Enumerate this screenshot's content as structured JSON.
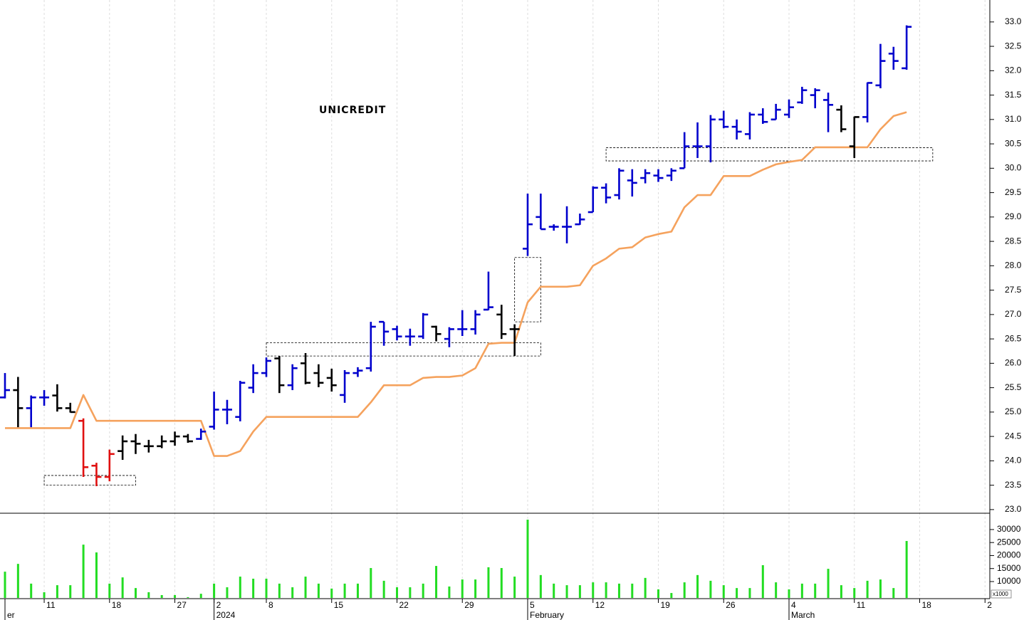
{
  "chart_data": [
    {
      "type": "ohlc",
      "title": "UNICREDIT",
      "categories": [
        null,
        null,
        null,
        "11",
        null,
        null,
        null,
        null,
        "18",
        null,
        null,
        null,
        null,
        "27",
        null,
        null,
        "2",
        null,
        null,
        null,
        "8",
        null,
        null,
        null,
        null,
        "15",
        null,
        null,
        null,
        null,
        "22",
        null,
        null,
        null,
        null,
        "29",
        null,
        null,
        null,
        null,
        "5",
        null,
        null,
        null,
        null,
        "12",
        null,
        null,
        null,
        null,
        "19",
        null,
        null,
        null,
        null,
        "26",
        null,
        null,
        null,
        null,
        "4",
        null,
        null,
        null,
        null,
        "11",
        null,
        null,
        null,
        null,
        "18",
        null,
        null,
        null,
        null,
        "2"
      ],
      "period_labels": [
        "er",
        null,
        null,
        null,
        null,
        null,
        null,
        null,
        null,
        null,
        null,
        null,
        null,
        null,
        null,
        null,
        "2024",
        null,
        null,
        null,
        null,
        null,
        null,
        null,
        null,
        null,
        null,
        null,
        null,
        null,
        null,
        null,
        null,
        null,
        null,
        null,
        null,
        null,
        null,
        null,
        "February",
        null,
        null,
        null,
        null,
        null,
        null,
        null,
        null,
        null,
        null,
        null,
        null,
        null,
        null,
        null,
        null,
        null,
        null,
        null,
        "March",
        null,
        null,
        null,
        null,
        null,
        null,
        null,
        null,
        null,
        null,
        null,
        null,
        null,
        null,
        null
      ],
      "open": [
        25.3,
        25.45,
        25.08,
        25.3,
        25.34,
        25.08,
        24.82,
        23.9,
        23.67,
        24.2,
        24.4,
        24.3,
        24.3,
        24.4,
        24.5,
        24.45,
        24.7,
        25.05,
        24.9,
        25.5,
        25.8,
        26.1,
        25.55,
        26.0,
        25.8,
        25.7,
        25.35,
        25.8,
        25.9,
        26.85,
        26.7,
        26.55,
        26.55,
        26.75,
        26.5,
        26.7,
        26.7,
        27.1,
        27.0,
        26.7,
        28.35,
        29.0,
        28.8,
        28.8,
        28.85,
        29.1,
        29.6,
        29.45,
        29.75,
        29.8,
        29.85,
        29.85,
        30.0,
        30.45,
        30.45,
        31.0,
        30.85,
        30.7,
        31.1,
        31.0,
        31.1,
        31.35,
        31.5,
        31.4,
        31.2,
        30.45,
        31.05,
        31.7,
        32.35,
        32.05,
        null,
        null,
        null,
        null,
        null,
        null
      ],
      "high": [
        25.8,
        25.72,
        25.34,
        25.45,
        25.57,
        25.19,
        24.87,
        23.96,
        24.23,
        24.52,
        24.55,
        24.43,
        24.52,
        24.6,
        24.55,
        24.66,
        25.42,
        25.25,
        25.64,
        25.98,
        26.12,
        26.15,
        25.98,
        26.21,
        25.98,
        25.89,
        25.86,
        25.92,
        26.85,
        26.85,
        26.77,
        26.71,
        27.03,
        26.77,
        26.74,
        27.09,
        27.09,
        27.88,
        27.2,
        26.8,
        29.48,
        29.48,
        28.85,
        29.22,
        29.07,
        29.63,
        29.69,
        30.0,
        29.98,
        29.98,
        29.98,
        30.0,
        30.74,
        30.94,
        31.09,
        31.18,
        31.0,
        31.15,
        31.23,
        31.32,
        31.41,
        31.67,
        31.64,
        31.55,
        31.29,
        31.06,
        31.76,
        32.55,
        32.49,
        32.93,
        null,
        null,
        null,
        null,
        null,
        null
      ],
      "low": [
        25.28,
        24.69,
        24.69,
        25.13,
        25.01,
        24.99,
        23.67,
        23.48,
        23.58,
        24.02,
        24.14,
        24.17,
        24.26,
        24.31,
        24.37,
        24.43,
        24.64,
        24.75,
        24.81,
        25.39,
        25.72,
        25.39,
        25.45,
        25.57,
        25.51,
        25.42,
        25.19,
        25.72,
        25.83,
        26.36,
        26.47,
        26.36,
        26.5,
        26.45,
        26.33,
        26.56,
        26.59,
        27.09,
        26.5,
        26.15,
        28.2,
        28.75,
        28.72,
        28.46,
        28.84,
        29.1,
        29.28,
        29.36,
        29.42,
        29.69,
        29.72,
        29.74,
        30.0,
        30.21,
        30.12,
        30.82,
        30.59,
        30.59,
        30.91,
        31.0,
        31.03,
        31.32,
        31.23,
        30.74,
        30.74,
        30.21,
        30.94,
        31.64,
        32.02,
        32.02,
        null,
        null,
        null,
        null,
        null,
        null
      ],
      "close": [
        25.45,
        25.08,
        25.3,
        25.3,
        25.08,
        25.0,
        23.87,
        23.67,
        24.14,
        24.4,
        24.35,
        24.3,
        24.4,
        24.5,
        24.4,
        24.6,
        25.05,
        25.05,
        25.6,
        25.8,
        26.05,
        25.55,
        25.9,
        25.6,
        25.6,
        25.55,
        25.8,
        25.85,
        26.75,
        26.65,
        26.55,
        26.55,
        27.0,
        26.6,
        26.7,
        26.7,
        27.0,
        27.15,
        26.6,
        26.7,
        28.85,
        28.75,
        28.8,
        28.8,
        28.95,
        29.6,
        29.4,
        29.95,
        29.7,
        29.9,
        29.8,
        29.95,
        30.45,
        30.45,
        31.0,
        30.85,
        30.75,
        31.1,
        30.95,
        31.2,
        31.25,
        31.6,
        31.6,
        31.3,
        30.8,
        31.05,
        31.75,
        32.2,
        32.2,
        32.9,
        null,
        null,
        null,
        null,
        null,
        null
      ],
      "bar_colors": [
        "mediumblue",
        "black",
        "mediumblue",
        "mediumblue",
        "black",
        "black",
        "#e01010",
        "#e01010",
        "#e01010",
        "black",
        "black",
        "black",
        "black",
        "black",
        "black",
        "mediumblue",
        "mediumblue",
        "mediumblue",
        "mediumblue",
        "mediumblue",
        "mediumblue",
        "black",
        "mediumblue",
        "black",
        "black",
        "black",
        "mediumblue",
        "mediumblue",
        "mediumblue",
        "mediumblue",
        "mediumblue",
        "mediumblue",
        "mediumblue",
        "black",
        "mediumblue",
        "mediumblue",
        "mediumblue",
        "mediumblue",
        "black",
        "black",
        "mediumblue",
        "mediumblue",
        "mediumblue",
        "mediumblue",
        "mediumblue",
        "mediumblue",
        "mediumblue",
        "mediumblue",
        "mediumblue",
        "mediumblue",
        "mediumblue",
        "mediumblue",
        "mediumblue",
        "mediumblue",
        "mediumblue",
        "mediumblue",
        "mediumblue",
        "mediumblue",
        "mediumblue",
        "mediumblue",
        "mediumblue",
        "mediumblue",
        "mediumblue",
        "mediumblue",
        "black",
        "black",
        "mediumblue",
        "mediumblue",
        "mediumblue",
        "mediumblue",
        null,
        null,
        null,
        null,
        null,
        null
      ],
      "stop_line": {
        "color": "#f5a25d",
        "values": [
          24.67,
          24.67,
          24.67,
          24.67,
          24.67,
          24.67,
          25.35,
          24.82,
          24.82,
          24.82,
          24.82,
          24.82,
          24.82,
          24.82,
          24.82,
          24.82,
          24.1,
          24.1,
          24.2,
          24.6,
          24.9,
          24.9,
          24.9,
          24.9,
          24.9,
          24.9,
          24.9,
          24.9,
          25.2,
          25.55,
          25.55,
          25.55,
          25.7,
          25.72,
          25.72,
          25.75,
          25.9,
          26.4,
          26.42,
          26.42,
          27.25,
          27.57,
          27.57,
          27.57,
          27.6,
          28.0,
          28.15,
          28.35,
          28.38,
          28.58,
          28.65,
          28.7,
          29.2,
          29.45,
          29.45,
          29.84,
          29.84,
          29.84,
          29.97,
          30.08,
          30.13,
          30.17,
          30.43,
          30.43,
          30.43,
          30.43,
          30.43,
          30.8,
          31.07,
          31.15,
          null,
          null,
          null,
          null,
          null,
          null
        ]
      },
      "boxes": [
        {
          "from": 3,
          "to": 10,
          "low": 23.5,
          "high": 23.7
        },
        {
          "from": 20,
          "to": 41,
          "low": 26.15,
          "high": 26.42
        },
        {
          "from": 39,
          "to": 41,
          "low": 26.85,
          "high": 28.17
        },
        {
          "from": 46,
          "to": 71,
          "low": 30.15,
          "high": 30.42
        }
      ],
      "ylim": [
        22.94,
        33.45
      ],
      "yticks": [
        {
          "value": 23,
          "label": "23.0"
        },
        {
          "value": 23.5,
          "label": "23.5"
        },
        {
          "value": 24,
          "label": "24.0"
        },
        {
          "value": 24.5,
          "label": "24.5"
        },
        {
          "value": 25,
          "label": "25.0"
        },
        {
          "value": 25.5,
          "label": "25.5"
        },
        {
          "value": 26,
          "label": "26.0"
        },
        {
          "value": 26.5,
          "label": "26.5"
        },
        {
          "value": 27,
          "label": "27.0"
        },
        {
          "value": 27.5,
          "label": "27.5"
        },
        {
          "value": 28,
          "label": "28.0"
        },
        {
          "value": 28.5,
          "label": "28.5"
        },
        {
          "value": 29,
          "label": "29.0"
        },
        {
          "value": 29.5,
          "label": "29.5"
        },
        {
          "value": 30,
          "label": "30.0"
        },
        {
          "value": 30.5,
          "label": "30.5"
        },
        {
          "value": 31,
          "label": "31.0"
        },
        {
          "value": 31.5,
          "label": "31.5"
        },
        {
          "value": 32,
          "label": "32.0"
        },
        {
          "value": 32.5,
          "label": "32.5"
        },
        {
          "value": 33,
          "label": "33.0"
        }
      ],
      "grid": true
    },
    {
      "type": "bar",
      "color": "#22dd22",
      "unit_label": "x1000",
      "values": [
        13800,
        16800,
        9200,
        5900,
        8600,
        8600,
        24200,
        21200,
        9200,
        11600,
        7500,
        5900,
        4800,
        4800,
        4000,
        5300,
        9200,
        7800,
        11900,
        11100,
        11100,
        9200,
        7800,
        11900,
        9200,
        7300,
        9200,
        9200,
        15200,
        10300,
        7800,
        7800,
        9200,
        16000,
        8100,
        10800,
        10800,
        15500,
        15200,
        11900,
        33800,
        12500,
        9200,
        8600,
        8600,
        9700,
        9700,
        9200,
        9200,
        11400,
        7000,
        5600,
        9700,
        12500,
        10300,
        8600,
        7500,
        7500,
        16300,
        9700,
        7000,
        9200,
        9200,
        14900,
        8600,
        7500,
        10300,
        10800,
        7500,
        25600,
        null,
        null,
        null,
        null,
        null,
        null
      ],
      "ylim": [
        3700,
        36000
      ],
      "yticks": [
        10000,
        15000,
        20000,
        25000,
        30000
      ]
    }
  ]
}
